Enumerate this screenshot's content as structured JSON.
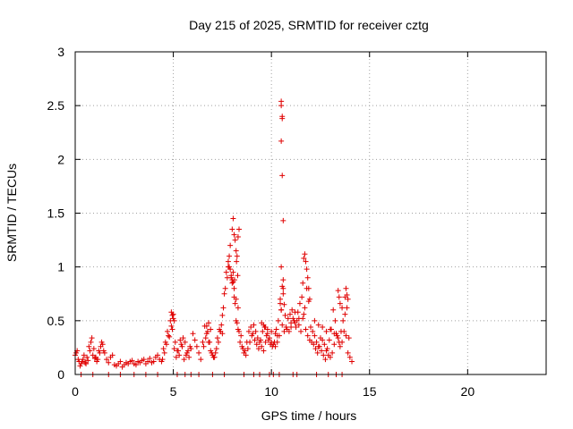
{
  "chart_data": {
    "type": "scatter",
    "title": "Day 215 of 2025, SRMTID for receiver cztg",
    "xlabel": "GPS time / hours",
    "ylabel": "SRMTID / TECUs",
    "xlim": [
      0,
      24
    ],
    "ylim": [
      0,
      3
    ],
    "xticks": [
      "0",
      "5",
      "10",
      "15",
      "20"
    ],
    "xtick_values": [
      0,
      5,
      10,
      15,
      20
    ],
    "yticks": [
      "0",
      "0.5",
      "1",
      "1.5",
      "2",
      "2.5",
      "3"
    ],
    "ytick_values": [
      0,
      0.5,
      1,
      1.5,
      2,
      2.5,
      3
    ],
    "grid": true,
    "marker": "+",
    "color": "#e00000",
    "series": [
      {
        "name": "SRMTID",
        "x": [
          0.0,
          0.1,
          0.2,
          0.3,
          0.4,
          0.5,
          0.6,
          0.7,
          0.8,
          0.9,
          1.0,
          1.1,
          1.2,
          1.3,
          1.4,
          1.5,
          1.6,
          1.7,
          1.8,
          1.9,
          2.0,
          2.1,
          2.2,
          2.3,
          2.4,
          2.5,
          2.6,
          2.7,
          2.8,
          2.9,
          3.0,
          3.1,
          3.2,
          3.3,
          3.4,
          3.5,
          3.6,
          3.7,
          3.8,
          3.9,
          4.0,
          4.1,
          4.2,
          4.3,
          4.4,
          4.5,
          4.6,
          4.7,
          4.8,
          4.9,
          5.0,
          5.1,
          5.2,
          5.3,
          5.4,
          5.5,
          5.6,
          5.7,
          5.8,
          5.9,
          6.0,
          6.1,
          6.2,
          6.3,
          6.4,
          6.5,
          6.6,
          6.7,
          6.8,
          6.9,
          7.0,
          7.1,
          7.2,
          7.3,
          7.4,
          7.5,
          7.6,
          7.7,
          7.8,
          7.9,
          8.0,
          8.1,
          8.2,
          8.3,
          8.4,
          8.5,
          8.6,
          8.7,
          8.8,
          8.9,
          9.0,
          9.1,
          9.2,
          9.3,
          9.4,
          9.5,
          9.6,
          9.7,
          9.8,
          9.9,
          10.0,
          10.1,
          10.2,
          10.3,
          10.4,
          10.5,
          10.6,
          10.7,
          10.8,
          10.9,
          11.0,
          11.1,
          11.2,
          11.3,
          11.4,
          11.5,
          11.6,
          11.7,
          11.8,
          11.9,
          12.0,
          12.1,
          12.2,
          12.3,
          12.4,
          12.5,
          12.6,
          12.7,
          12.8,
          12.9,
          13.0,
          13.1,
          13.2,
          13.3,
          13.4,
          13.5,
          13.6,
          13.7,
          13.8,
          13.9,
          14.0,
          14.1,
          0.05,
          0.15,
          0.25,
          0.35,
          0.45,
          0.55,
          0.65,
          0.75,
          0.85,
          0.95,
          1.05,
          1.15,
          1.25,
          1.35,
          1.45,
          4.45,
          4.55,
          4.65,
          4.75,
          4.85,
          4.95,
          5.05,
          5.15,
          5.25,
          5.35,
          5.45,
          5.55,
          5.65,
          5.75,
          5.85,
          6.55,
          6.65,
          6.75,
          6.85,
          6.95,
          7.05,
          7.15,
          7.25,
          7.35,
          7.45,
          7.55,
          7.65,
          7.75,
          7.85,
          7.95,
          8.05,
          8.15,
          8.25,
          8.35,
          8.45,
          8.55,
          8.65,
          8.75,
          8.85,
          8.95,
          9.05,
          9.15,
          9.25,
          9.35,
          9.45,
          9.55,
          9.65,
          9.75,
          9.85,
          9.95,
          10.05,
          10.15,
          10.25,
          10.35,
          10.45,
          10.55,
          10.65,
          10.75,
          10.85,
          10.95,
          11.05,
          11.15,
          11.25,
          11.35,
          11.45,
          11.55,
          11.65,
          11.75,
          11.85,
          11.95,
          12.05,
          12.15,
          12.25,
          12.35,
          12.45,
          12.55,
          12.65,
          12.75,
          12.85,
          12.95,
          13.05,
          13.15,
          13.25,
          13.35,
          13.45,
          13.55,
          13.65,
          13.75,
          13.85,
          13.95,
          7.9,
          8.0,
          8.05,
          8.1,
          8.15,
          8.2,
          8.25,
          8.3,
          8.35,
          8.0,
          8.1,
          8.2,
          8.3,
          7.8,
          7.85,
          7.95,
          8.05,
          8.12,
          8.22,
          8.28,
          10.5,
          10.5,
          10.55,
          10.55,
          10.5,
          10.55,
          10.6,
          10.5,
          10.6,
          10.55,
          10.45,
          10.65,
          10.5,
          10.6,
          11.7,
          11.75,
          11.8,
          11.85,
          11.6,
          11.9,
          11.65,
          11.95,
          13.4,
          13.45,
          13.5,
          13.8,
          13.85,
          13.9,
          13.6,
          13.75,
          4.9,
          5.0,
          4.95,
          5.05,
          6.7,
          6.8,
          6.9,
          7.4,
          7.5,
          9.5,
          9.6,
          9.7,
          9.8,
          10.0,
          10.2,
          10.3,
          11.0,
          11.2,
          11.4,
          12.2,
          12.4,
          12.6,
          12.8,
          13.0,
          13.2,
          0.3,
          0.9,
          1.7,
          2.3,
          3.0,
          3.6,
          4.2,
          5.2,
          5.6,
          5.9,
          6.3,
          7.0,
          7.6,
          8.6,
          9.1,
          9.4,
          9.9,
          10.1,
          10.4,
          11.1,
          11.3,
          12.3,
          12.9,
          13.3,
          13.6
        ],
        "y": [
          0.18,
          0.22,
          0.12,
          0.1,
          0.14,
          0.11,
          0.16,
          0.26,
          0.3,
          0.18,
          0.15,
          0.12,
          0.22,
          0.26,
          0.28,
          0.2,
          0.14,
          0.11,
          0.16,
          0.18,
          0.09,
          0.08,
          0.1,
          0.12,
          0.07,
          0.09,
          0.11,
          0.1,
          0.12,
          0.13,
          0.1,
          0.09,
          0.12,
          0.11,
          0.13,
          0.14,
          0.1,
          0.12,
          0.15,
          0.11,
          0.12,
          0.16,
          0.18,
          0.14,
          0.12,
          0.24,
          0.3,
          0.4,
          0.35,
          0.45,
          0.52,
          0.3,
          0.22,
          0.18,
          0.28,
          0.34,
          0.3,
          0.2,
          0.16,
          0.24,
          0.38,
          0.32,
          0.26,
          0.2,
          0.14,
          0.3,
          0.45,
          0.38,
          0.3,
          0.22,
          0.18,
          0.16,
          0.24,
          0.3,
          0.4,
          0.55,
          0.75,
          0.95,
          1.05,
          0.98,
          0.88,
          0.72,
          0.5,
          0.42,
          0.3,
          0.26,
          0.2,
          0.18,
          0.24,
          0.3,
          0.36,
          0.46,
          0.4,
          0.34,
          0.3,
          0.26,
          0.22,
          0.3,
          0.38,
          0.34,
          0.3,
          0.28,
          0.26,
          0.3,
          0.36,
          0.6,
          0.8,
          0.55,
          0.42,
          0.4,
          0.48,
          0.52,
          0.58,
          0.5,
          0.46,
          0.4,
          0.52,
          0.62,
          0.8,
          0.68,
          0.44,
          0.4,
          0.36,
          0.3,
          0.26,
          0.34,
          0.32,
          0.28,
          0.22,
          0.18,
          0.16,
          0.2,
          0.28,
          0.38,
          0.34,
          0.26,
          0.3,
          0.4,
          0.36,
          0.2,
          0.16,
          0.12,
          0.2,
          0.14,
          0.08,
          0.12,
          0.18,
          0.1,
          0.13,
          0.22,
          0.34,
          0.24,
          0.16,
          0.14,
          0.2,
          0.3,
          0.22,
          0.14,
          0.2,
          0.28,
          0.36,
          0.5,
          0.42,
          0.24,
          0.16,
          0.22,
          0.32,
          0.26,
          0.14,
          0.18,
          0.22,
          0.26,
          0.26,
          0.34,
          0.4,
          0.3,
          0.2,
          0.16,
          0.2,
          0.34,
          0.42,
          0.46,
          0.62,
          0.8,
          0.9,
          1.0,
          0.92,
          0.86,
          0.66,
          0.48,
          0.4,
          0.36,
          0.24,
          0.22,
          0.3,
          0.4,
          0.44,
          0.38,
          0.32,
          0.28,
          0.24,
          0.32,
          0.4,
          0.44,
          0.36,
          0.32,
          0.28,
          0.26,
          0.3,
          0.42,
          0.5,
          0.66,
          0.46,
          0.4,
          0.44,
          0.52,
          0.56,
          0.6,
          0.5,
          0.44,
          0.58,
          0.66,
          0.72,
          0.56,
          0.42,
          0.36,
          0.32,
          0.3,
          0.28,
          0.24,
          0.2,
          0.26,
          0.22,
          0.18,
          0.14,
          0.24,
          0.32,
          0.42,
          0.6,
          0.5,
          0.36,
          0.3,
          0.4,
          0.5,
          0.72,
          0.62,
          0.34,
          1.2,
          1.35,
          1.45,
          1.3,
          1.25,
          1.15,
          1.1,
          1.28,
          1.35,
          0.85,
          0.8,
          0.7,
          0.62,
          1.0,
          1.1,
          0.9,
          0.95,
          0.88,
          1.05,
          0.92,
          2.54,
          2.5,
          2.4,
          2.38,
          2.17,
          1.85,
          1.43,
          1.0,
          0.88,
          0.82,
          0.7,
          0.65,
          0.6,
          0.75,
          1.12,
          1.05,
          0.98,
          0.9,
          0.85,
          0.8,
          1.08,
          0.7,
          0.78,
          0.72,
          0.66,
          0.8,
          0.74,
          0.7,
          0.62,
          0.56,
          0.58,
          0.56,
          0.55,
          0.5,
          0.45,
          0.48,
          0.42,
          0.4,
          0.38,
          0.48,
          0.46,
          0.44,
          0.42,
          0.4,
          0.38,
          0.36,
          0.44,
          0.48,
          0.52,
          0.5,
          0.46,
          0.44,
          0.4,
          0.42,
          0.38,
          0.0,
          0.0,
          0.0,
          0.0,
          0.0,
          0.0,
          0.0,
          0.0,
          0.0,
          0.0,
          0.0,
          0.0,
          0.0,
          0.0,
          0.0,
          0.0,
          0.0,
          0.0,
          0.0,
          0.0,
          0.0,
          0.0,
          0.0,
          0.0,
          0.0
        ]
      }
    ]
  }
}
